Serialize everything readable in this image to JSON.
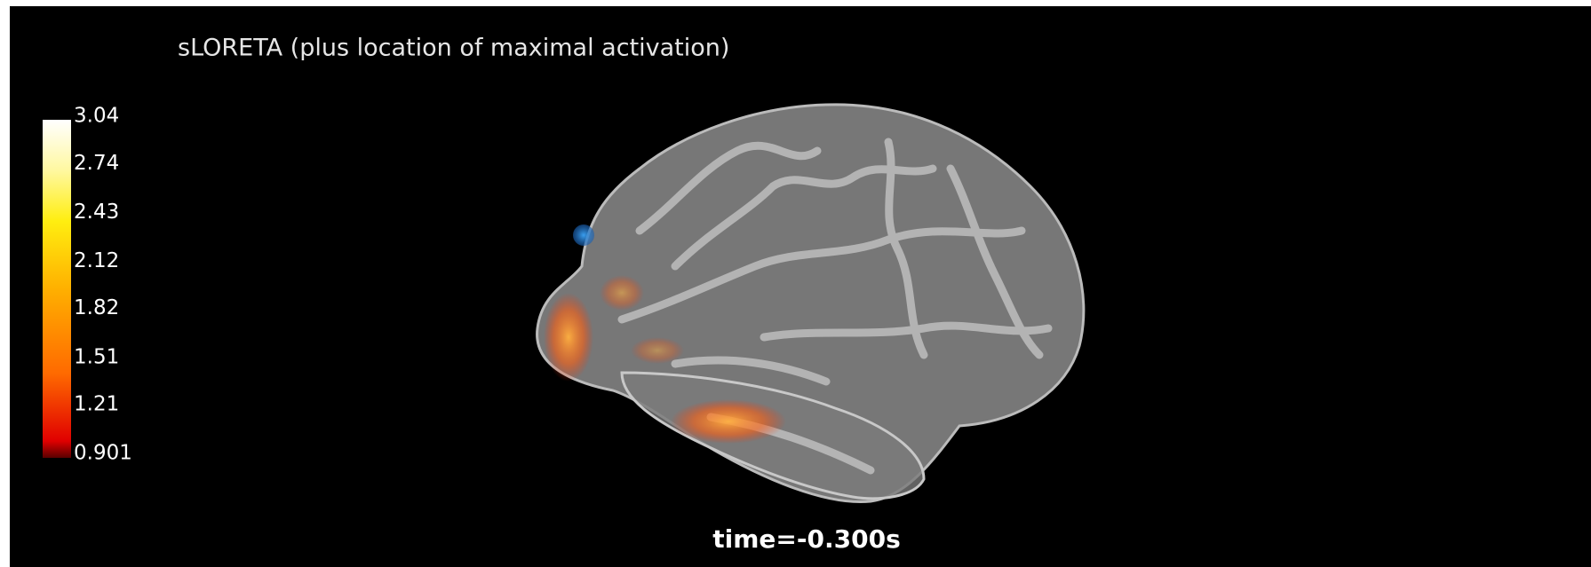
{
  "title": "sLORETA (plus location of maximal activation)",
  "colorbar": {
    "ticks": [
      3.04,
      2.74,
      2.43,
      2.12,
      1.82,
      1.51,
      1.21,
      0.901
    ]
  },
  "time_label": "time=-0.300s"
}
